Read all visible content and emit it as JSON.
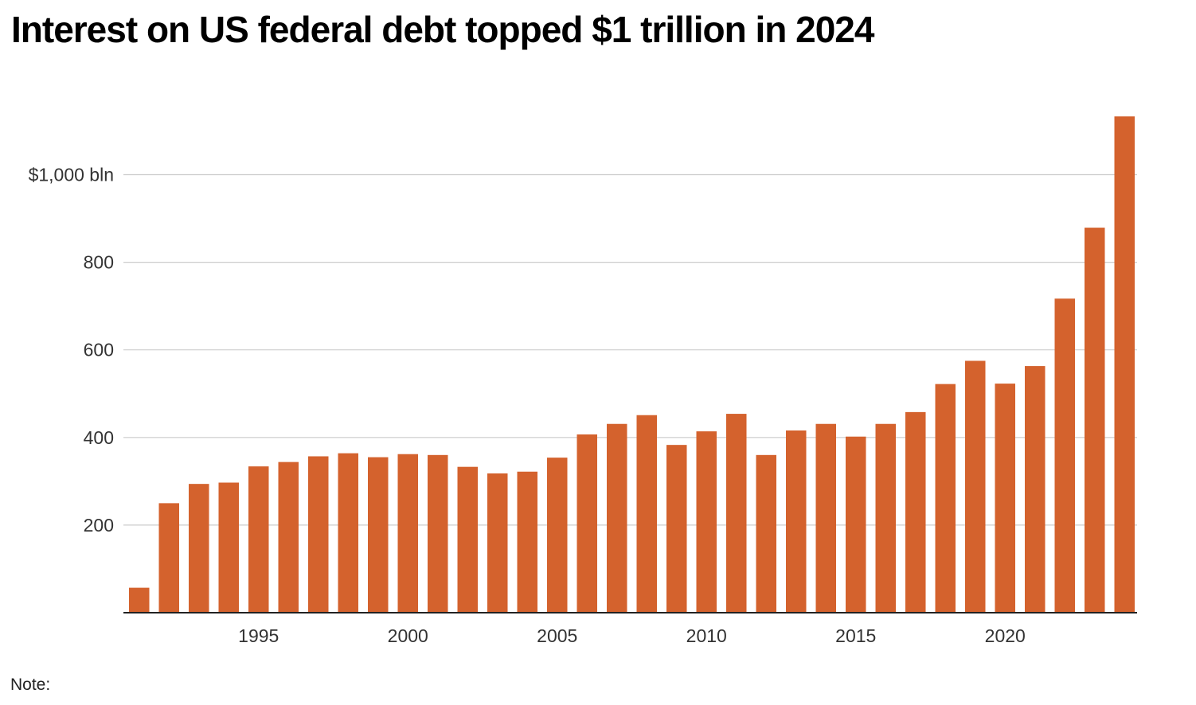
{
  "chart_data": {
    "type": "bar",
    "title": "Interest on US federal debt topped $1 trillion in 2024",
    "categories": [
      "1991",
      "1992",
      "1993",
      "1994",
      "1995",
      "1996",
      "1997",
      "1998",
      "1999",
      "2000",
      "2001",
      "2002",
      "2003",
      "2004",
      "2005",
      "2006",
      "2007",
      "2008",
      "2009",
      "2010",
      "2011",
      "2012",
      "2013",
      "2014",
      "2015",
      "2016",
      "2017",
      "2018",
      "2019",
      "2020",
      "2021",
      "2022",
      "2023",
      "2024"
    ],
    "values": [
      57,
      250,
      294,
      297,
      334,
      344,
      357,
      364,
      355,
      362,
      360,
      333,
      318,
      322,
      354,
      407,
      431,
      451,
      383,
      414,
      454,
      360,
      416,
      431,
      402,
      431,
      458,
      522,
      575,
      523,
      563,
      717,
      879,
      1133
    ],
    "ylim": [
      0,
      1150
    ],
    "yticks": [
      200,
      400,
      600,
      800,
      1000
    ],
    "ytick_labels": [
      "200",
      "400",
      "600",
      "800",
      "$1,000 bln"
    ],
    "xtick_labels": [
      "1995",
      "2000",
      "2005",
      "2010",
      "2015",
      "2020"
    ],
    "xlabel": "",
    "ylabel": "",
    "grid": true,
    "bar_color": "#d4622d",
    "note": "Note:"
  }
}
